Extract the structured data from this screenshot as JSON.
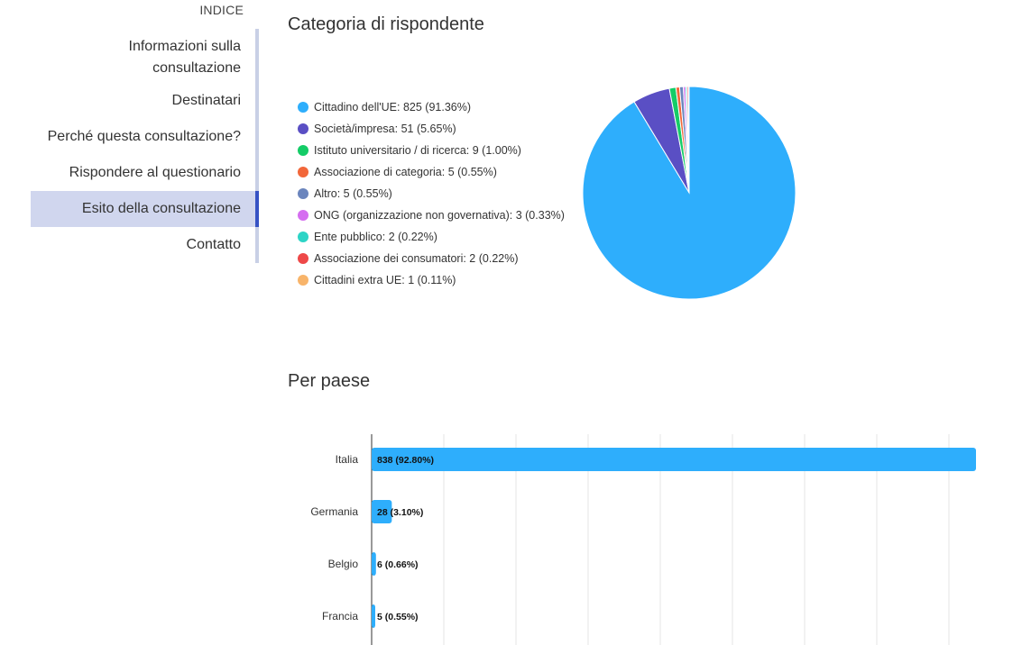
{
  "toc": {
    "heading": "INDICE",
    "items": [
      {
        "label": "Informazioni sulla consultazione",
        "lines": [
          "Informazioni sulla",
          "consultazione"
        ],
        "active": false
      },
      {
        "label": "Destinatari",
        "active": false
      },
      {
        "label": "Perché questa consultazione?",
        "active": false
      },
      {
        "label": "Rispondere al questionario",
        "active": false
      },
      {
        "label": "Esito della consultazione",
        "active": true
      },
      {
        "label": "Contatto",
        "active": false
      }
    ]
  },
  "chart_data": [
    {
      "type": "pie",
      "title": "Categoria di rispondente",
      "legend_position": "left",
      "slices": [
        {
          "label": "Cittadino dell'UE: 825 (91.36%)",
          "name": "Cittadino dell'UE",
          "value": 825,
          "percent": 91.36,
          "color": "#2eaefc"
        },
        {
          "label": "Società/impresa: 51 (5.65%)",
          "name": "Società/impresa",
          "value": 51,
          "percent": 5.65,
          "color": "#5a4fc4"
        },
        {
          "label": "Istituto universitario / di ricerca: 9 (1.00%)",
          "name": "Istituto universitario / di ricerca",
          "value": 9,
          "percent": 1.0,
          "color": "#14cc67"
        },
        {
          "label": "Associazione di categoria: 5 (0.55%)",
          "name": "Associazione di categoria",
          "value": 5,
          "percent": 0.55,
          "color": "#f2673a"
        },
        {
          "label": "Altro: 5 (0.55%)",
          "name": "Altro",
          "value": 5,
          "percent": 0.55,
          "color": "#6b85bd"
        },
        {
          "label": "ONG (organizzazione non governativa): 3 (0.33%)",
          "name": "ONG (organizzazione non governativa)",
          "value": 3,
          "percent": 0.33,
          "color": "#d56ef0"
        },
        {
          "label": "Ente pubblico: 2 (0.22%)",
          "name": "Ente pubblico",
          "value": 2,
          "percent": 0.22,
          "color": "#2dd4c6"
        },
        {
          "label": "Associazione dei consumatori: 2 (0.22%)",
          "name": "Associazione dei consumatori",
          "value": 2,
          "percent": 0.22,
          "color": "#ee4848"
        },
        {
          "label": "Cittadini extra UE: 1 (0.11%)",
          "name": "Cittadini extra UE",
          "value": 1,
          "percent": 0.11,
          "color": "#f8b46a"
        }
      ]
    },
    {
      "type": "bar",
      "orientation": "horizontal",
      "title": "Per paese",
      "grid": true,
      "bar_color": "#2eaefc",
      "categories": [
        "Italia",
        "Germania",
        "Belgio",
        "Francia"
      ],
      "values": [
        838,
        28,
        6,
        5
      ],
      "value_labels": [
        "838 (92.80%)",
        "28 (3.10%)",
        "6 (0.66%)",
        "5 (0.55%)"
      ],
      "xlim": [
        0,
        850
      ]
    }
  ]
}
